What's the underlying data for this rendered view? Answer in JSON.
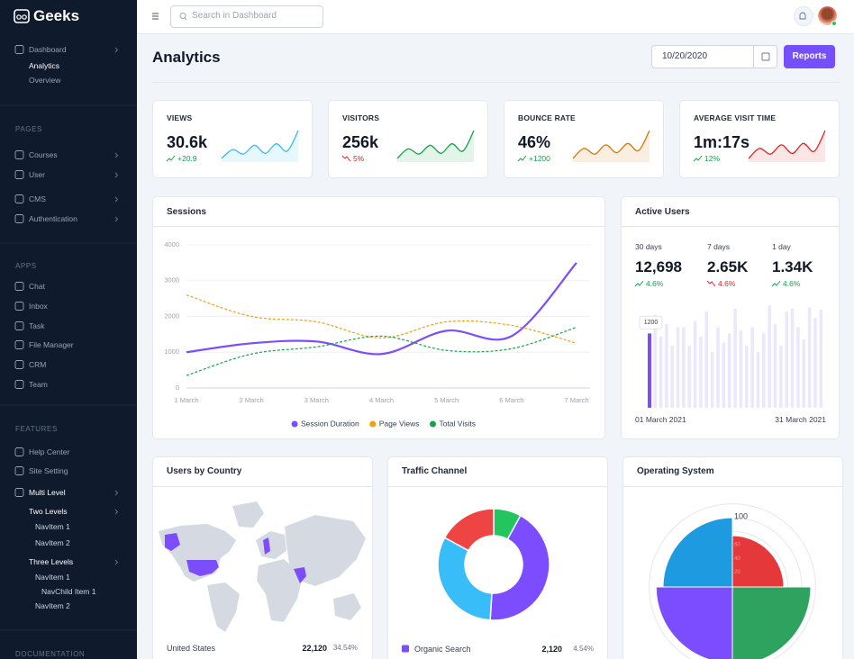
{
  "sidebar": {
    "brand": "Geeks",
    "dashboard": {
      "label": "Dashboard",
      "items": [
        "Analytics",
        "Overview"
      ]
    },
    "sections": [
      {
        "title": "PAGES",
        "items": [
          "Courses",
          "User",
          "CMS",
          "Authentication"
        ]
      },
      {
        "title": "APPS",
        "items": [
          "Chat",
          "Inbox",
          "Task",
          "File Manager",
          "CRM",
          "Team"
        ]
      },
      {
        "title": "FEATURES",
        "items": [
          "Help Center",
          "Site Setting",
          "Multi Level"
        ]
      }
    ],
    "multi_level": {
      "two_levels": {
        "label": "Two Levels",
        "items": [
          "NavItem 1",
          "NavItem 2"
        ]
      },
      "three_levels": {
        "label": "Three Levels",
        "items": [
          "NavItem 1",
          "NavChild Item 1",
          "NavItem 2"
        ]
      }
    },
    "documentation": "DOCUMENTATION"
  },
  "topbar": {
    "search_placeholder": "Search in Dashboard"
  },
  "header": {
    "title": "Analytics",
    "date": "10/20/2020",
    "button": "Reports"
  },
  "stats": [
    {
      "label": "VIEWS",
      "value": "30.6k",
      "change": "+20.9",
      "trend": "up",
      "color": "#38bdf8",
      "sparkline": [
        30,
        42,
        36,
        48,
        37,
        50,
        40,
        68
      ]
    },
    {
      "label": "VISITORS",
      "value": "256k",
      "change": "5%",
      "trend": "down",
      "color": "#16a34a",
      "sparkline": [
        32,
        45,
        38,
        50,
        39,
        52,
        42,
        70
      ]
    },
    {
      "label": "BOUNCE RATE",
      "value": "46%",
      "change": "+1200",
      "trend": "up",
      "color": "#d97706",
      "sparkline": [
        30,
        44,
        36,
        49,
        38,
        51,
        41,
        69
      ]
    },
    {
      "label": "AVERAGE VISIT TIME",
      "value": "1m:17s",
      "change": "12%",
      "trend": "up",
      "color": "#dc2626",
      "sparkline": [
        31,
        45,
        37,
        50,
        38,
        52,
        41,
        70
      ]
    }
  ],
  "countries": {
    "title": "Users by Country",
    "rows": [
      {
        "name": "United States",
        "users": "22,120",
        "share": "34.54%"
      }
    ]
  },
  "chart_data": [
    {
      "type": "line",
      "title": "Sessions",
      "categories": [
        "1 March",
        "2 March",
        "3 March",
        "4 March",
        "5 March",
        "6 March",
        "7 March"
      ],
      "ylim": [
        0,
        4000
      ],
      "yticks": [
        0,
        1000,
        2000,
        3000,
        4000
      ],
      "grid": true,
      "legend": "bottom",
      "series": [
        {
          "name": "Session Duration",
          "color": "#7c4dff",
          "line_style": "solid",
          "values": [
            1000,
            1250,
            1300,
            950,
            1600,
            1450,
            3500
          ]
        },
        {
          "name": "Page Views",
          "color": "#f59e0b",
          "line_style": "dashed",
          "values": [
            2600,
            2000,
            1850,
            1400,
            1850,
            1750,
            1250
          ]
        },
        {
          "name": "Total Visits",
          "color": "#16a34a",
          "line_style": "dashed",
          "values": [
            350,
            950,
            1150,
            1450,
            1050,
            1100,
            1700
          ]
        }
      ]
    },
    {
      "type": "bar",
      "title": "Active Users",
      "summary": [
        {
          "label": "30 days",
          "value": "12,698",
          "change": "4.6%",
          "trend": "up"
        },
        {
          "label": "7 days",
          "value": "2.65K",
          "change": "4.6%",
          "trend": "down"
        },
        {
          "label": "1 day",
          "value": "1.34K",
          "change": "4.6%",
          "trend": "up"
        }
      ],
      "values": [
        1200,
        1500,
        1150,
        1350,
        1000,
        1300,
        1300,
        1000,
        1400,
        1150,
        1550,
        900,
        1300,
        1050,
        1200,
        1600,
        1250,
        1000,
        1300,
        900,
        1200,
        1650,
        1350,
        1000,
        1550,
        1600,
        1300,
        1100,
        1620,
        1450,
        1580
      ],
      "color": "#ebe8fb",
      "highlight_color": "#7c4dff",
      "x_start_label": "01 March 2021",
      "x_end_label": "31 March 2021"
    },
    {
      "type": "doughnut",
      "title": "Traffic Channel",
      "values": [
        8,
        43,
        32,
        17
      ],
      "colors": [
        "#22c55e",
        "#7c4dff",
        "#38bdf8",
        "#ef4444"
      ],
      "legend": [
        {
          "label": "Organic Search",
          "value": "2,120",
          "share": "4.54%",
          "color": "#7c4dff"
        }
      ]
    },
    {
      "type": "polar",
      "title": "Operating System",
      "values": [
        74,
        113,
        110,
        100
      ],
      "colors": [
        "#e5383b",
        "#2ea35f",
        "#7c4dff",
        "#1e9be0"
      ],
      "rlim": [
        0,
        120
      ],
      "rticks": [
        20,
        40,
        60,
        80,
        100
      ]
    }
  ]
}
